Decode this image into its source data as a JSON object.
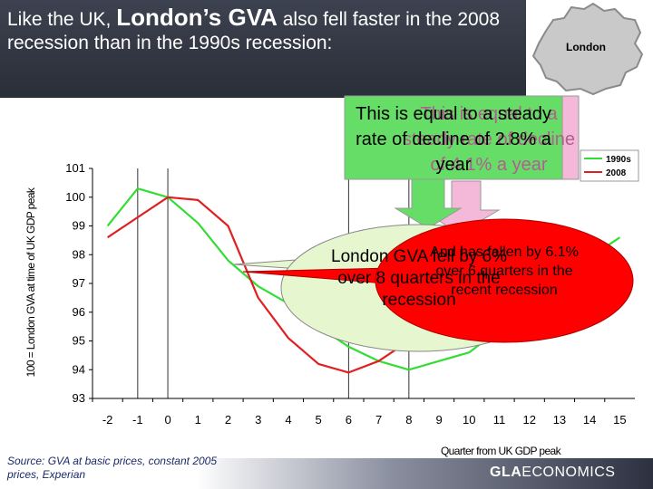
{
  "title": {
    "part1": "Like the UK, ",
    "emph": "London’s GVA",
    "part2": " also fell faster in the 2008 recession than in the 1990s recession:"
  },
  "map": {
    "label": "London",
    "fill": "#c9c9c9",
    "stroke": "#8a8a8a"
  },
  "footer": {
    "source": "Source: GVA at basic prices, constant 2005 prices, Experian",
    "brand_bold": "GLA",
    "brand_rest": "ECONOMICS"
  },
  "callouts": {
    "green_box": "This is equal to a steady rate of decline of 2.8% a year",
    "pink_box": "This is equal to a steady rate of decline of 4.1% a year",
    "green_oval": "London GVA fell by 6% over 8 quarters in the recession",
    "red_oval": "And has fallen by 6.1% over 6 quarters in the recent recession"
  },
  "colors": {
    "series_1990s": "#33dd33",
    "series_2008": "#e02020",
    "green_callout": "#66dd66",
    "pink_callout": "#f4b8d8",
    "oval_green": "#e6f7d0",
    "oval_red": "#ff0000"
  },
  "chart_data": {
    "type": "line",
    "xlabel": "Quarter from UK GDP peak",
    "ylabel": "100 = London GVA at time of UK GDP peak",
    "x": [
      -2,
      -1,
      0,
      1,
      2,
      3,
      4,
      5,
      6,
      7,
      8,
      9,
      10,
      11,
      12,
      13,
      14,
      15
    ],
    "ylim": [
      93,
      101
    ],
    "yticks": [
      93,
      94,
      95,
      96,
      97,
      98,
      99,
      100,
      101
    ],
    "series": [
      {
        "name": "1990s",
        "values": [
          99.0,
          100.3,
          100.0,
          99.1,
          97.8,
          96.9,
          96.3,
          95.5,
          94.8,
          94.3,
          94.0,
          94.3,
          94.6,
          95.4,
          96.0,
          96.8,
          97.9,
          98.6
        ]
      },
      {
        "name": "2008",
        "values": [
          98.6,
          99.3,
          100.0,
          99.9,
          99.0,
          96.5,
          95.1,
          94.2,
          93.9,
          94.3,
          95.0,
          null,
          null,
          null,
          null,
          null,
          null,
          null
        ]
      }
    ],
    "vertical_markers": [
      -1,
      0,
      6,
      8
    ],
    "legend_position": "top-right"
  }
}
